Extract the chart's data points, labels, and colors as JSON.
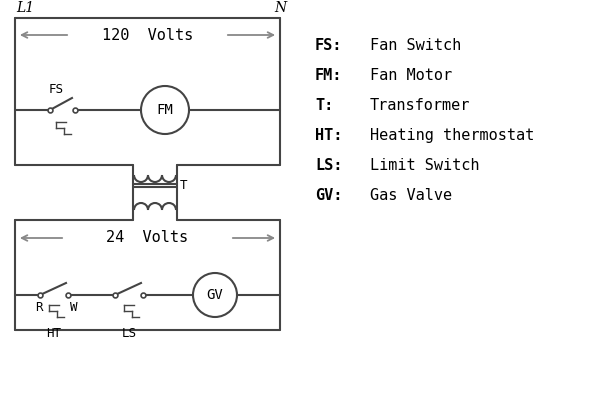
{
  "bg_color": "#ffffff",
  "line_color": "#444444",
  "text_color": "#000000",
  "gray_color": "#888888",
  "legend": [
    [
      "FS:",
      "Fan Switch"
    ],
    [
      "FM:",
      "Fan Motor"
    ],
    [
      "T:",
      "Transformer"
    ],
    [
      "HT:",
      "Heating thermostat"
    ],
    [
      "LS:",
      "Limit Switch"
    ],
    [
      "GV:",
      "Gas Valve"
    ]
  ],
  "lw": 1.5,
  "lw_thin": 1.0
}
